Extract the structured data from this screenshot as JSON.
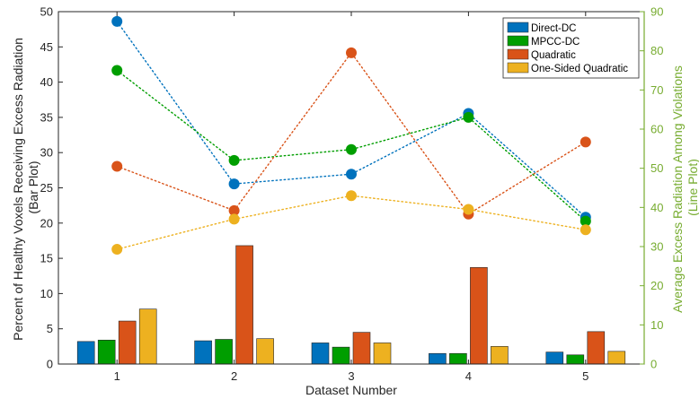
{
  "chart_data": {
    "type": "bar",
    "secondary_type": "line",
    "categories": [
      "1",
      "2",
      "3",
      "4",
      "5"
    ],
    "xlabel": "Dataset Number",
    "ylabel": [
      "Percent of Healthy Voxels Receiving Excess Radiation",
      "(Bar Plot)"
    ],
    "y2label": [
      "Average Excess Radiation Among Violations",
      "(Line Plot)"
    ],
    "ylim": [
      0,
      50
    ],
    "y2lim": [
      0,
      90
    ],
    "yticks": [
      0,
      5,
      10,
      15,
      20,
      25,
      30,
      35,
      40,
      45,
      50
    ],
    "y2ticks": [
      0,
      10,
      20,
      30,
      40,
      50,
      60,
      70,
      80,
      90
    ],
    "right_axis_color": "#77AC30",
    "legend_position": "top-right",
    "grid": false,
    "bar_series": [
      {
        "name": "Direct-DC",
        "color": "#0072BD",
        "values": [
          3.2,
          3.3,
          3.0,
          1.5,
          1.7
        ]
      },
      {
        "name": "MPCC-DC",
        "color": "#009E00",
        "values": [
          3.4,
          3.5,
          2.4,
          1.5,
          1.3
        ]
      },
      {
        "name": "Quadratic",
        "color": "#D95319",
        "values": [
          6.1,
          16.8,
          4.5,
          13.7,
          4.6
        ]
      },
      {
        "name": "One-Sided Quadratic",
        "color": "#EDB120",
        "values": [
          7.8,
          3.6,
          3.0,
          2.5,
          1.8
        ]
      }
    ],
    "line_series": [
      {
        "name": "Direct-DC",
        "color": "#0072BD",
        "values": [
          87.5,
          46.0,
          48.5,
          64.0,
          37.5
        ]
      },
      {
        "name": "MPCC-DC",
        "color": "#009E00",
        "values": [
          75.0,
          52.0,
          54.8,
          63.0,
          36.5
        ]
      },
      {
        "name": "Quadratic",
        "color": "#D95319",
        "values": [
          50.5,
          39.2,
          79.5,
          38.3,
          56.7
        ]
      },
      {
        "name": "One-Sided Quadratic",
        "color": "#EDB120",
        "values": [
          29.3,
          37.0,
          43.0,
          39.5,
          34.3
        ]
      }
    ]
  }
}
